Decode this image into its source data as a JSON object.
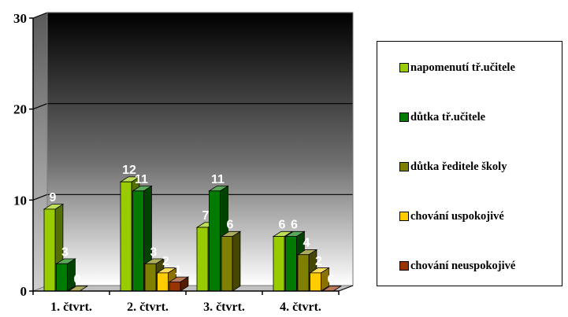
{
  "chart_data": {
    "type": "bar",
    "categories": [
      "1. čtvrt.",
      "2. čtvrt.",
      "3. čtvrt.",
      "4. čtvrt."
    ],
    "series": [
      {
        "name": "napomenutí tř.učitele",
        "color": "#99cc00",
        "values": [
          9,
          12,
          7,
          6
        ]
      },
      {
        "name": "důtka tř.učitele",
        "color": "#007a00",
        "values": [
          3,
          11,
          11,
          6
        ]
      },
      {
        "name": "důtka ředitele školy",
        "color": "#808000",
        "values": [
          0,
          3,
          6,
          4
        ]
      },
      {
        "name": "chování uspokojivé",
        "color": "#ffcc00",
        "values": [
          null,
          2,
          null,
          2
        ]
      },
      {
        "name": "chování neuspokojivé",
        "color": "#993300",
        "values": [
          null,
          1,
          null,
          0
        ]
      }
    ],
    "yticks": [
      0,
      10,
      20,
      30
    ],
    "ylim": [
      0,
      30
    ],
    "grid": true,
    "legend_position": "right",
    "title": "",
    "xlabel": "",
    "ylabel": ""
  }
}
